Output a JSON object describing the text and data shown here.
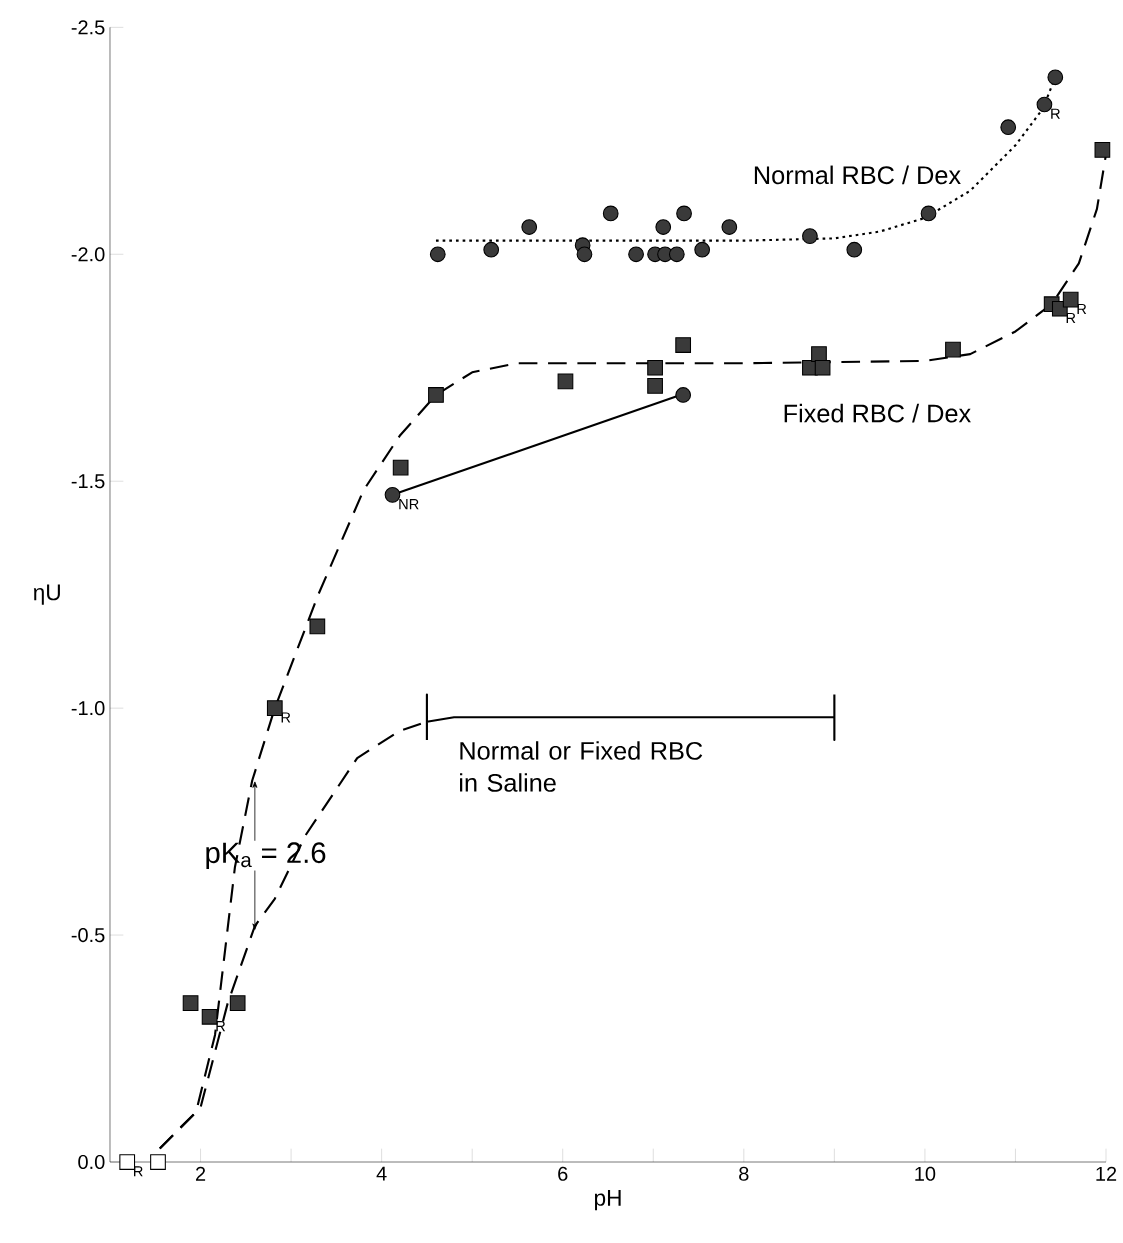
{
  "chart_data": {
    "type": "scatter",
    "xlabel": "pH",
    "ylabel": "ηU",
    "xlim": [
      1,
      12
    ],
    "ylim": [
      0,
      -2.5
    ],
    "xticks": [
      {
        "value": 2,
        "label": "2"
      },
      {
        "value": 3,
        "label": null
      },
      {
        "value": 4,
        "label": "4"
      },
      {
        "value": 5,
        "label": null
      },
      {
        "value": 6,
        "label": "6"
      },
      {
        "value": 7,
        "label": null
      },
      {
        "value": 8,
        "label": "8"
      },
      {
        "value": 9,
        "label": null
      },
      {
        "value": 10,
        "label": "10"
      },
      {
        "value": 11,
        "label": null
      },
      {
        "value": 12,
        "label": "12"
      }
    ],
    "yticks": [
      {
        "value": 0,
        "label": "0.0"
      },
      {
        "value": -0.5,
        "label": "-0.5"
      },
      {
        "value": -1.0,
        "label": "-1.0"
      },
      {
        "value": -1.5,
        "label": "-1.5"
      },
      {
        "value": -2.0,
        "label": "-2.0"
      },
      {
        "value": -2.5,
        "label": "-2.5"
      }
    ],
    "grid": false,
    "series": [
      {
        "name": "Normal RBC / Dex",
        "marker": "circle",
        "color": "#3a3a3a",
        "x": [
          4.62,
          5.21,
          5.63,
          6.22,
          6.24,
          6.53,
          6.81,
          7.02,
          7.11,
          7.13,
          7.26,
          7.34,
          7.54,
          7.84,
          8.73,
          9.22,
          10.04,
          10.92,
          11.32,
          11.44,
          4.12,
          7.33
        ],
        "values": [
          -2.0,
          -2.01,
          -2.06,
          -2.02,
          -2.0,
          -2.09,
          -2.0,
          -2.0,
          -2.06,
          -2.0,
          -2.0,
          -2.09,
          -2.01,
          -2.06,
          -2.04,
          -2.01,
          -2.09,
          -2.28,
          -2.33,
          -2.39,
          -1.47,
          -1.69
        ]
      },
      {
        "name": "Fixed RBC / Dex",
        "marker": "square",
        "color": "#3a3a3a",
        "x": [
          1.89,
          2.1,
          2.41,
          2.82,
          3.29,
          4.21,
          4.6,
          6.03,
          7.02,
          7.02,
          7.33,
          8.73,
          8.83,
          8.87,
          10.31,
          11.4,
          11.49,
          11.61,
          11.96
        ],
        "values": [
          -0.35,
          -0.32,
          -0.35,
          -1.0,
          -1.18,
          -1.53,
          -1.69,
          -1.72,
          -1.71,
          -1.75,
          -1.8,
          -1.75,
          -1.78,
          -1.75,
          -1.79,
          -1.89,
          -1.88,
          -1.9,
          -2.23
        ]
      },
      {
        "marker": "square",
        "color": "#ffffff",
        "x": [
          1.19,
          1.53
        ],
        "values": [
          0.0,
          0.0
        ]
      },
      {
        "type": "line",
        "line_style": "dotted",
        "color": "#000000",
        "x": [
          4.6,
          6,
          8,
          9,
          9.5,
          10,
          10.5,
          11,
          11.3,
          11.44
        ],
        "values": [
          -2.03,
          -2.03,
          -2.03,
          -2.035,
          -2.05,
          -2.08,
          -2.14,
          -2.24,
          -2.32,
          -2.39
        ]
      },
      {
        "type": "line",
        "line_style": "dashed",
        "color": "#000000",
        "x": [
          1.55,
          1.95,
          2.16,
          2.38,
          2.57,
          2.82,
          3.3,
          3.8,
          4.2,
          4.6,
          5.0,
          5.5,
          6,
          8,
          10,
          10.5,
          11,
          11.4,
          11.7,
          11.9,
          12
        ],
        "values": [
          -0.03,
          -0.11,
          -0.28,
          -0.65,
          -0.84,
          -1.0,
          -1.25,
          -1.48,
          -1.6,
          -1.69,
          -1.74,
          -1.76,
          -1.76,
          -1.76,
          -1.765,
          -1.78,
          -1.83,
          -1.89,
          -1.98,
          -2.1,
          -2.22
        ]
      },
      {
        "name": "Normal or Fixed RBC in Saline",
        "type": "line",
        "line_style": "dashed",
        "color": "#000000",
        "x": [
          1.55,
          2.0,
          2.3,
          2.6,
          2.82,
          3.16,
          3.73,
          4.2,
          4.5
        ],
        "values": [
          -0.03,
          -0.12,
          -0.35,
          -0.52,
          -0.58,
          -0.72,
          -0.89,
          -0.95,
          -0.97
        ]
      },
      {
        "type": "line",
        "line_style": "solid",
        "color": "#000000",
        "x": [
          4.5,
          4.5,
          4.5,
          4.8,
          9.0,
          9.0,
          9.0
        ],
        "values": [
          -0.93,
          -1.03,
          -0.97,
          -0.98,
          -0.98,
          -0.93,
          -1.03
        ]
      },
      {
        "type": "line",
        "line_style": "solid",
        "color": "#000000",
        "x": [
          4.12,
          7.3
        ],
        "values": [
          -1.47,
          -1.69
        ]
      }
    ],
    "annotations": [
      {
        "text": "pK$_{a}$ = 2.6",
        "x": 2.6,
        "y": -0.84
      },
      {
        "text": "R",
        "x": 1.19,
        "y": 0.0
      },
      {
        "text": "R",
        "x": 2.1,
        "y": -0.32
      },
      {
        "text": "R",
        "x": 2.82,
        "y": -1.0
      },
      {
        "text": "NR",
        "x": 4.12,
        "y": -1.47
      },
      {
        "text": "R",
        "x": 11.32,
        "y": -2.33
      },
      {
        "text": "R",
        "x": 11.49,
        "y": -1.88
      },
      {
        "text": "R",
        "x": 11.61,
        "y": -1.9
      }
    ]
  }
}
